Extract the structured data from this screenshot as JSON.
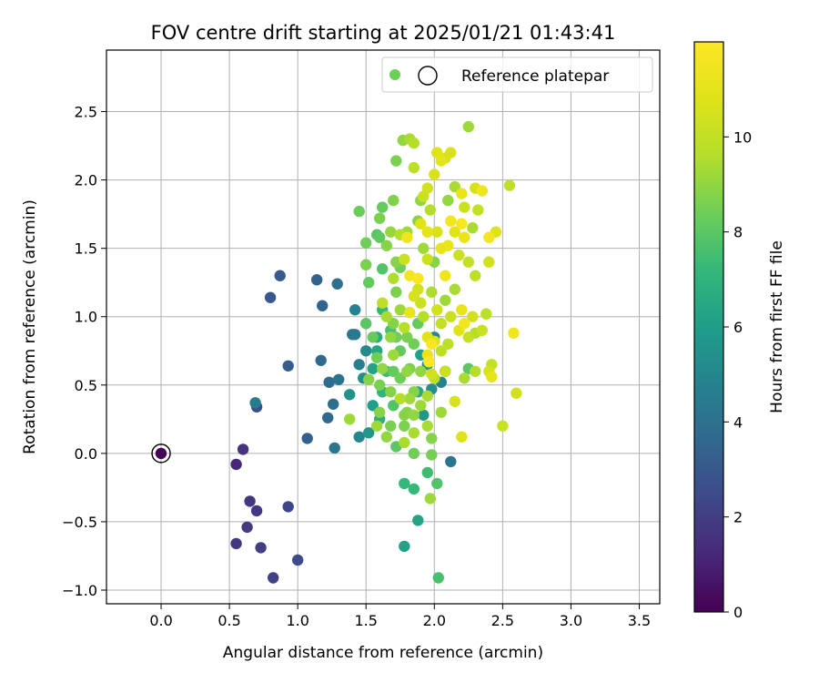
{
  "chart_data": {
    "type": "scatter",
    "title": "FOV centre drift starting at 2025/01/21 01:43:41",
    "xlabel": "Angular distance from reference (arcmin)",
    "ylabel": "Rotation from reference (arcmin)",
    "xlim": [
      -0.4,
      3.65
    ],
    "ylim": [
      -1.1,
      2.95
    ],
    "xticks": [
      "0.0",
      "0.5",
      "1.0",
      "1.5",
      "2.0",
      "2.5",
      "3.0",
      "3.5"
    ],
    "yticks": [
      "−1.0",
      "−0.5",
      "0.0",
      "0.5",
      "1.0",
      "1.5",
      "2.0",
      "2.5"
    ],
    "grid": true,
    "legend_position": "top-right",
    "legend_label": "Reference platepar",
    "colorbar": {
      "label": "Hours from first FF file",
      "range": [
        0,
        12
      ],
      "ticks": [
        "0",
        "2",
        "4",
        "6",
        "8",
        "10"
      ],
      "colormap": "viridis"
    },
    "reference": {
      "x": 0.0,
      "y": 0.0
    },
    "points": [
      [
        0.0,
        0.0,
        0.05
      ],
      [
        0.55,
        -0.08,
        1.2
      ],
      [
        0.6,
        0.03,
        1.6
      ],
      [
        0.55,
        -0.66,
        1.8
      ],
      [
        0.63,
        -0.54,
        1.9
      ],
      [
        0.65,
        -0.35,
        1.7
      ],
      [
        0.7,
        -0.42,
        1.8
      ],
      [
        0.73,
        -0.69,
        2.0
      ],
      [
        0.82,
        -0.91,
        2.1
      ],
      [
        0.93,
        -0.39,
        2.3
      ],
      [
        1.0,
        -0.78,
        2.5
      ],
      [
        0.7,
        0.34,
        2.6
      ],
      [
        0.69,
        0.37,
        4.5
      ],
      [
        0.8,
        1.14,
        3.0
      ],
      [
        0.87,
        1.3,
        3.1
      ],
      [
        0.93,
        0.64,
        3.2
      ],
      [
        1.07,
        0.11,
        3.3
      ],
      [
        1.14,
        1.27,
        3.4
      ],
      [
        1.18,
        1.08,
        3.5
      ],
      [
        1.17,
        0.68,
        3.6
      ],
      [
        1.22,
        0.26,
        3.7
      ],
      [
        1.23,
        0.52,
        3.8
      ],
      [
        1.26,
        0.36,
        3.9
      ],
      [
        1.27,
        0.04,
        4.2
      ],
      [
        1.29,
        1.24,
        4.0
      ],
      [
        1.3,
        0.54,
        4.1
      ],
      [
        1.4,
        0.87,
        4.3
      ],
      [
        1.42,
        0.87,
        4.4
      ],
      [
        1.45,
        0.65,
        4.6
      ],
      [
        1.42,
        1.05,
        4.8
      ],
      [
        1.38,
        0.43,
        5.5
      ],
      [
        1.38,
        0.25,
        9.2
      ],
      [
        1.45,
        0.12,
        5.0
      ],
      [
        1.48,
        0.55,
        5.4
      ],
      [
        1.5,
        0.75,
        5.2
      ],
      [
        1.52,
        0.15,
        5.7
      ],
      [
        1.55,
        0.35,
        6.0
      ],
      [
        1.55,
        0.62,
        6.2
      ],
      [
        1.58,
        0.75,
        6.4
      ],
      [
        1.58,
        0.85,
        6.6
      ],
      [
        1.6,
        0.25,
        6.8
      ],
      [
        1.62,
        0.45,
        7.0
      ],
      [
        1.62,
        1.05,
        7.2
      ],
      [
        1.65,
        0.6,
        7.4
      ],
      [
        1.68,
        0.9,
        7.6
      ],
      [
        1.7,
        0.35,
        7.8
      ],
      [
        1.72,
        0.05,
        8.0
      ],
      [
        1.75,
        0.75,
        8.2
      ],
      [
        1.75,
        0.55,
        8.4
      ],
      [
        1.78,
        0.2,
        8.6
      ],
      [
        1.78,
        0.28,
        8.8
      ],
      [
        1.8,
        0.6,
        9.0
      ],
      [
        1.82,
        0.4,
        9.2
      ],
      [
        1.85,
        0.15,
        9.4
      ],
      [
        1.88,
        0.45,
        6.5
      ],
      [
        1.9,
        0.72,
        6.0
      ],
      [
        1.92,
        0.28,
        5.7
      ],
      [
        1.95,
        0.65,
        5.5
      ],
      [
        1.98,
        0.47,
        5.3
      ],
      [
        2.0,
        0.85,
        5.0
      ],
      [
        2.05,
        0.52,
        4.8
      ],
      [
        2.08,
        0.6,
        4.5
      ],
      [
        2.12,
        -0.06,
        4.2
      ],
      [
        2.02,
        -0.22,
        7.8
      ],
      [
        1.95,
        -0.14,
        7.4
      ],
      [
        1.85,
        -0.26,
        7.2
      ],
      [
        1.88,
        -0.49,
        6.3
      ],
      [
        1.78,
        -0.22,
        7.2
      ],
      [
        1.78,
        -0.68,
        6.2
      ],
      [
        2.03,
        -0.91,
        7.6
      ],
      [
        1.97,
        -0.33,
        9.2
      ],
      [
        1.98,
        -0.01,
        8.5
      ],
      [
        1.98,
        0.11,
        8.8
      ],
      [
        1.85,
        0.0,
        8.4
      ],
      [
        1.45,
        1.77,
        8.3
      ],
      [
        1.58,
        1.6,
        7.9
      ],
      [
        1.6,
        1.72,
        8.6
      ],
      [
        1.62,
        1.8,
        8.2
      ],
      [
        1.65,
        1.52,
        8.8
      ],
      [
        1.7,
        1.85,
        8.7
      ],
      [
        1.72,
        2.14,
        8.6
      ],
      [
        1.75,
        1.36,
        8.4
      ],
      [
        1.77,
        2.29,
        9.0
      ],
      [
        1.8,
        1.62,
        9.2
      ],
      [
        1.82,
        2.3,
        9.4
      ],
      [
        1.85,
        2.27,
        9.6
      ],
      [
        1.85,
        2.09,
        9.8
      ],
      [
        1.88,
        1.7,
        8.8
      ],
      [
        1.9,
        1.85,
        9.0
      ],
      [
        1.92,
        1.88,
        10.2
      ],
      [
        1.95,
        1.94,
        10.4
      ],
      [
        1.97,
        1.78,
        9.6
      ],
      [
        2.0,
        2.04,
        10.6
      ],
      [
        2.02,
        2.2,
        10.8
      ],
      [
        2.05,
        2.14,
        11.0
      ],
      [
        2.08,
        2.16,
        10.5
      ],
      [
        2.1,
        1.85,
        9.0
      ],
      [
        2.12,
        2.2,
        10.6
      ],
      [
        2.15,
        1.95,
        9.4
      ],
      [
        2.2,
        1.9,
        11.2
      ],
      [
        2.22,
        1.8,
        10.2
      ],
      [
        2.25,
        2.39,
        9.2
      ],
      [
        2.3,
        1.94,
        10.6
      ],
      [
        2.32,
        1.78,
        10.0
      ],
      [
        2.35,
        1.92,
        11.5
      ],
      [
        2.4,
        1.58,
        11.6
      ],
      [
        2.4,
        1.4,
        10.4
      ],
      [
        2.45,
        1.62,
        10.8
      ],
      [
        2.55,
        1.96,
        9.8
      ],
      [
        1.5,
        1.38,
        8.6
      ],
      [
        1.5,
        1.54,
        8.4
      ],
      [
        1.52,
        1.25,
        8.2
      ],
      [
        1.6,
        1.58,
        8.1
      ],
      [
        1.62,
        1.35,
        7.8
      ],
      [
        1.68,
        1.62,
        9.1
      ],
      [
        1.7,
        1.28,
        9.5
      ],
      [
        1.72,
        1.4,
        8.8
      ],
      [
        1.75,
        1.6,
        9.6
      ],
      [
        1.78,
        1.42,
        10.2
      ],
      [
        1.8,
        1.58,
        11.4
      ],
      [
        1.82,
        1.3,
        11.6
      ],
      [
        1.85,
        1.15,
        10.5
      ],
      [
        1.88,
        1.2,
        10.4
      ],
      [
        1.88,
        1.28,
        11.8
      ],
      [
        1.9,
        1.68,
        10.8
      ],
      [
        1.92,
        1.5,
        9.2
      ],
      [
        1.95,
        1.62,
        11.0
      ],
      [
        1.95,
        1.42,
        10.2
      ],
      [
        1.98,
        1.18,
        9.5
      ],
      [
        2.0,
        1.4,
        8.8
      ],
      [
        2.02,
        1.62,
        10.6
      ],
      [
        2.05,
        1.5,
        11.1
      ],
      [
        2.08,
        1.3,
        11.4
      ],
      [
        2.1,
        1.52,
        11.2
      ],
      [
        2.12,
        1.7,
        11.6
      ],
      [
        2.15,
        1.62,
        10.8
      ],
      [
        2.18,
        1.45,
        10.2
      ],
      [
        2.2,
        1.68,
        11.8
      ],
      [
        2.22,
        1.58,
        11.2
      ],
      [
        2.25,
        1.4,
        10.0
      ],
      [
        2.28,
        1.65,
        9.4
      ],
      [
        2.3,
        1.3,
        9.8
      ],
      [
        1.62,
        1.1,
        9.8
      ],
      [
        1.65,
        1.0,
        9.4
      ],
      [
        1.68,
        0.85,
        9.0
      ],
      [
        1.7,
        0.95,
        8.8
      ],
      [
        1.72,
        1.18,
        8.6
      ],
      [
        1.75,
        1.05,
        9.2
      ],
      [
        1.78,
        0.92,
        9.6
      ],
      [
        1.8,
        0.85,
        8.6
      ],
      [
        1.82,
        1.03,
        11.2
      ],
      [
        1.85,
        0.8,
        8.4
      ],
      [
        1.88,
        0.95,
        8.2
      ],
      [
        1.9,
        1.1,
        10.2
      ],
      [
        1.92,
        1.0,
        9.6
      ],
      [
        1.95,
        0.72,
        11.2
      ],
      [
        1.95,
        0.85,
        10.8
      ],
      [
        2.0,
        0.82,
        10.6
      ],
      [
        2.02,
        1.05,
        10.4
      ],
      [
        2.05,
        0.95,
        10.0
      ],
      [
        2.08,
        1.12,
        9.2
      ],
      [
        2.1,
        0.8,
        9.8
      ],
      [
        2.12,
        1.0,
        10.2
      ],
      [
        2.15,
        1.2,
        9.4
      ],
      [
        2.18,
        0.9,
        10.8
      ],
      [
        2.2,
        1.05,
        11.2
      ],
      [
        2.22,
        0.95,
        11.6
      ],
      [
        2.25,
        0.85,
        10.0
      ],
      [
        2.28,
        1.0,
        10.4
      ],
      [
        2.3,
        0.88,
        9.6
      ],
      [
        2.35,
        0.9,
        10.2
      ],
      [
        2.38,
        1.02,
        9.8
      ],
      [
        2.4,
        0.6,
        10.5
      ],
      [
        2.42,
        0.65,
        10.0
      ],
      [
        2.3,
        0.6,
        9.6
      ],
      [
        2.25,
        0.62,
        8.0
      ],
      [
        2.22,
        0.55,
        9.4
      ],
      [
        2.42,
        0.56,
        11.0
      ],
      [
        2.5,
        0.2,
        10.2
      ],
      [
        2.6,
        0.44,
        10.4
      ],
      [
        2.58,
        0.88,
        11.5
      ],
      [
        2.2,
        0.12,
        10.8
      ],
      [
        2.15,
        0.38,
        10.6
      ],
      [
        2.05,
        0.3,
        9.2
      ],
      [
        2.0,
        0.55,
        9.8
      ],
      [
        1.98,
        0.58,
        10.4
      ],
      [
        1.95,
        0.2,
        9.4
      ],
      [
        1.9,
        0.35,
        9.2
      ],
      [
        1.85,
        0.28,
        9.0
      ],
      [
        1.8,
        0.3,
        8.8
      ],
      [
        1.78,
        0.08,
        9.4
      ],
      [
        1.75,
        0.4,
        9.6
      ],
      [
        1.7,
        0.6,
        8.2
      ],
      [
        1.68,
        0.2,
        8.6
      ],
      [
        1.65,
        0.12,
        9.0
      ],
      [
        1.6,
        0.3,
        8.8
      ],
      [
        1.58,
        0.2,
        9.2
      ],
      [
        1.52,
        0.54,
        8.8
      ],
      [
        1.55,
        0.85,
        8.2
      ],
      [
        1.5,
        0.95,
        8.0
      ],
      [
        1.58,
        0.7,
        8.4
      ],
      [
        1.6,
        0.5,
        8.6
      ],
      [
        1.62,
        0.62,
        9.0
      ],
      [
        1.68,
        0.45,
        8.8
      ],
      [
        1.7,
        0.72,
        9.2
      ],
      [
        1.72,
        0.85,
        8.4
      ],
      [
        1.82,
        0.62,
        8.6
      ],
      [
        1.85,
        0.45,
        8.8
      ],
      [
        1.9,
        0.6,
        9.0
      ],
      [
        1.95,
        0.42,
        9.4
      ],
      [
        1.98,
        0.8,
        11.8
      ],
      [
        1.96,
        0.67,
        12.0
      ],
      [
        2.05,
        0.75,
        9.8
      ],
      [
        2.08,
        0.6,
        10.2
      ]
    ]
  }
}
